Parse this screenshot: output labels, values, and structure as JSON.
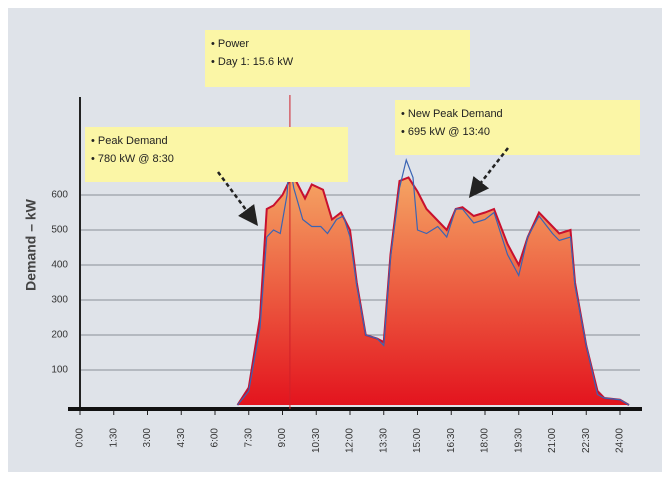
{
  "chart_data": {
    "type": "area",
    "ylabel": "Demand – kW",
    "xlim": [
      0,
      25
    ],
    "ylim": [
      0,
      880
    ],
    "yticks": [
      100,
      200,
      300,
      400,
      500,
      600
    ],
    "xticks": [
      {
        "value": 0,
        "label": "0:00"
      },
      {
        "value": 1.5,
        "label": "1:30"
      },
      {
        "value": 3,
        "label": "3:00"
      },
      {
        "value": 4.5,
        "label": "4:30"
      },
      {
        "value": 6,
        "label": "6:00"
      },
      {
        "value": 7.5,
        "label": "7:30"
      },
      {
        "value": 9,
        "label": "9:00"
      },
      {
        "value": 10.5,
        "label": "10:30"
      },
      {
        "value": 12,
        "label": "12:00"
      },
      {
        "value": 13.5,
        "label": "13:30"
      },
      {
        "value": 15,
        "label": "15:00"
      },
      {
        "value": 16.5,
        "label": "16:30"
      },
      {
        "value": 18,
        "label": "18:00"
      },
      {
        "value": 19.5,
        "label": "19:30"
      },
      {
        "value": 21,
        "label": "21:00"
      },
      {
        "value": 22.5,
        "label": "22:30"
      },
      {
        "value": 24,
        "label": "24:00"
      }
    ],
    "grid": true,
    "series": [
      {
        "color": "#c8102e",
        "fill_top": "#f5a463",
        "fill_bottom": "#e3141e",
        "x": [
          7.0,
          7.5,
          8.0,
          8.3,
          8.6,
          9.0,
          9.3,
          9.6,
          10.0,
          10.3,
          10.8,
          11.2,
          11.6,
          12.0,
          12.3,
          12.7,
          13.2,
          13.5,
          13.8,
          14.2,
          14.6,
          15.0,
          15.4,
          16.0,
          16.3,
          16.7,
          17.0,
          17.5,
          18.0,
          18.4,
          19.0,
          19.5,
          19.9,
          20.4,
          21.0,
          21.3,
          21.8,
          22.0,
          22.5,
          23.0,
          23.3,
          24.0,
          24.4
        ],
        "values": [
          0,
          50,
          250,
          560,
          570,
          600,
          640,
          640,
          590,
          630,
          615,
          530,
          550,
          500,
          350,
          200,
          190,
          180,
          430,
          640,
          650,
          610,
          560,
          520,
          500,
          560,
          565,
          540,
          550,
          560,
          460,
          400,
          480,
          550,
          510,
          490,
          500,
          350,
          170,
          40,
          20,
          15,
          0
        ]
      },
      {
        "color": "#3a64b4",
        "x": [
          7.0,
          7.5,
          8.0,
          8.3,
          8.6,
          8.9,
          9.2,
          9.3,
          9.5,
          9.9,
          10.3,
          10.7,
          11.0,
          11.4,
          11.7,
          12.0,
          12.3,
          12.7,
          13.2,
          13.5,
          13.8,
          14.2,
          14.5,
          14.8,
          15.0,
          15.4,
          15.9,
          16.3,
          16.7,
          17.0,
          17.5,
          18.0,
          18.4,
          19.0,
          19.5,
          19.9,
          20.4,
          21.0,
          21.3,
          21.8,
          22.0,
          22.5,
          23.0,
          23.3,
          24.0,
          24.4
        ],
        "values": [
          0,
          40,
          220,
          480,
          500,
          490,
          600,
          700,
          620,
          530,
          510,
          510,
          490,
          530,
          540,
          480,
          340,
          200,
          190,
          170,
          420,
          620,
          700,
          650,
          500,
          490,
          510,
          480,
          560,
          560,
          520,
          530,
          550,
          430,
          370,
          480,
          540,
          490,
          470,
          480,
          340,
          170,
          30,
          20,
          15,
          0
        ]
      }
    ],
    "marker_x": 9.33,
    "annotations": [
      {
        "lines": [
          "• Peak Demand",
          "• 780 kW @ 8:30"
        ]
      },
      {
        "lines": [
          "• Power",
          "• Day 1: 15.6 kW"
        ]
      },
      {
        "lines": [
          "• New Peak Demand",
          "• 695 kW @ 13:40"
        ]
      }
    ]
  }
}
